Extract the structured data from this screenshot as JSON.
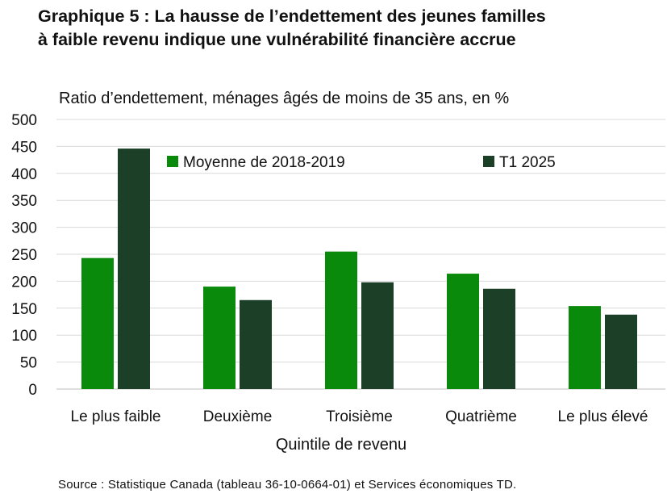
{
  "title_line1": "Graphique 5 : La hausse de l’endettement des jeunes familles",
  "title_line2": "à faible revenu indique une vulnérabilité financière accrue",
  "source": "Source : Statistique Canada (tableau 36-10-0664-01) et Services économiques TD.",
  "colors": {
    "series1": "#0a8a0a",
    "series2": "#1c4027",
    "grid": "#d9d9d9"
  },
  "chart_data": {
    "type": "bar",
    "title": "Ratio d’endettement, ménages âgés de moins de 35 ans, en %",
    "xlabel": "Quintile de revenu",
    "ylabel": "",
    "ylim": [
      0,
      500
    ],
    "yticks": [
      0,
      50,
      100,
      150,
      200,
      250,
      300,
      350,
      400,
      450,
      500
    ],
    "grid": true,
    "legend_position": "top",
    "categories": [
      "Le plus faible",
      "Deuxième",
      "Troisième",
      "Quatrième",
      "Le plus élevé"
    ],
    "series": [
      {
        "name": "Moyenne de 2018-2019",
        "values": [
          243,
          190,
          255,
          214,
          154
        ]
      },
      {
        "name": "T1 2025",
        "values": [
          446,
          165,
          198,
          186,
          138
        ]
      }
    ]
  }
}
